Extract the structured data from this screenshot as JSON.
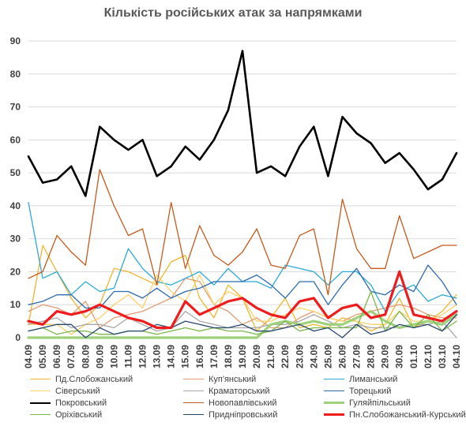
{
  "chart_data": {
    "type": "line",
    "title": "Кількість російських атак за напрямками",
    "ylim": [
      0,
      90
    ],
    "yticks": [
      0,
      10,
      20,
      30,
      40,
      50,
      60,
      70,
      80,
      90
    ],
    "grid": true,
    "legend_placement": "bottom",
    "categories": [
      "04.09",
      "05.09",
      "06.09",
      "07.09",
      "08.09",
      "09.09",
      "10.09",
      "11.09",
      "12.09",
      "13.09",
      "14.09",
      "15.09",
      "16.09",
      "17.09",
      "18.09",
      "19.09",
      "20.09",
      "21.09",
      "22.09",
      "23.09",
      "24.09",
      "25.09",
      "26.09",
      "27.09",
      "28.09",
      "29.09",
      "30.09",
      "01.10",
      "02.10",
      "03.10",
      "04.10"
    ],
    "tick_labels": [
      "04.09",
      "05.09",
      "06.09",
      "07.09",
      "08.09",
      "09.09",
      "10.09",
      "11.09",
      "12.09",
      "13.09",
      "14.09",
      "15.09",
      "16.09",
      "17.09",
      "18.09",
      "19.09",
      "20.09",
      "21.09",
      "22.09",
      "23.09",
      "24.09",
      "25.09",
      "26.09",
      "27.09",
      "28.09",
      "29.09",
      "30.09",
      "01.10",
      "02.10",
      "03.10",
      "04.10"
    ],
    "series": [
      {
        "name": "Пд.Слобожанський",
        "color": "#f0b62c",
        "width": 1.3,
        "values": [
          4,
          28,
          20,
          12,
          6,
          10,
          21,
          20,
          18,
          16,
          23,
          25,
          12,
          6,
          16,
          12,
          2,
          6,
          12,
          3,
          4,
          3,
          6,
          5,
          2,
          4,
          12,
          3,
          5,
          8,
          13
        ]
      },
      {
        "name": "Куп'янський",
        "color": "#e39b72",
        "width": 1.3,
        "values": [
          8,
          10,
          9,
          7,
          11,
          3,
          6,
          7,
          8,
          10,
          12,
          18,
          17,
          10,
          8,
          4,
          6,
          3,
          3,
          6,
          8,
          6,
          5,
          7,
          8,
          9,
          10,
          9,
          7,
          6,
          6
        ]
      },
      {
        "name": "Лиманський",
        "color": "#2aa9d9",
        "width": 1.3,
        "values": [
          41,
          18,
          20,
          13,
          17,
          14,
          15,
          27,
          21,
          17,
          16,
          18,
          20,
          16,
          21,
          17,
          17,
          15,
          22,
          21,
          20,
          16,
          20,
          20,
          16,
          8,
          14,
          16,
          11,
          13,
          12
        ]
      },
      {
        "name": "Сіверський",
        "color": "#fdd26b",
        "width": 1.3,
        "values": [
          4,
          4,
          4,
          1,
          4,
          6,
          10,
          13,
          9,
          19,
          14,
          11,
          19,
          10,
          14,
          12,
          5,
          5,
          7,
          9,
          8,
          6,
          5,
          5,
          4,
          4,
          8,
          5,
          5,
          7,
          10
        ]
      },
      {
        "name": "Краматорський",
        "color": "#a6a6a6",
        "width": 1.3,
        "values": [
          4,
          5,
          6,
          3,
          4,
          4,
          3,
          6,
          4,
          2,
          3,
          8,
          5,
          4,
          3,
          3,
          3,
          4,
          4,
          5,
          7,
          5,
          3,
          4,
          3,
          3,
          3,
          4,
          4,
          5,
          0
        ]
      },
      {
        "name": "Торецький",
        "color": "#2c6aad",
        "width": 1.3,
        "values": [
          10,
          11,
          13,
          13,
          9,
          9,
          14,
          14,
          12,
          15,
          12,
          14,
          15,
          17,
          17,
          17,
          19,
          16,
          12,
          17,
          17,
          10,
          16,
          21,
          14,
          13,
          16,
          14,
          22,
          17,
          10
        ]
      },
      {
        "name": "Покровський",
        "color": "#000000",
        "width": 2.6,
        "values": [
          55,
          47,
          48,
          52,
          43,
          64,
          60,
          57,
          60,
          49,
          52,
          58,
          54,
          60,
          69,
          87,
          50,
          52,
          49,
          58,
          64,
          49,
          67,
          62,
          59,
          53,
          56,
          51,
          45,
          48,
          56
        ]
      },
      {
        "name": "Новопавлівський",
        "color": "#c55a1b",
        "width": 1.3,
        "values": [
          18,
          20,
          31,
          26,
          22,
          51,
          40,
          31,
          33,
          16,
          41,
          21,
          34,
          25,
          22,
          26,
          33,
          22,
          21,
          31,
          33,
          13,
          42,
          27,
          21,
          21,
          37,
          24,
          26,
          28,
          28
        ]
      },
      {
        "name": "Гуляйпільський",
        "color": "#9fd17d",
        "width": 3.2,
        "values": [
          0,
          0,
          0,
          0,
          0,
          0,
          0,
          0,
          0,
          0,
          0,
          0,
          0,
          0,
          0,
          0,
          0,
          4,
          5,
          4,
          5,
          4,
          4,
          6,
          8,
          5,
          3,
          4,
          5,
          4,
          7
        ]
      },
      {
        "name": "Оріхівський",
        "color": "#7ab648",
        "width": 1.3,
        "values": [
          2,
          3,
          1,
          2,
          2,
          1,
          1,
          2,
          2,
          1,
          2,
          3,
          2,
          3,
          2,
          2,
          1,
          2,
          5,
          2,
          3,
          3,
          3,
          3,
          14,
          2,
          8,
          3,
          7,
          2,
          5
        ]
      },
      {
        "name": "Придніпровський",
        "color": "#27466e",
        "width": 1.3,
        "values": [
          2,
          3,
          4,
          4,
          0,
          3,
          1,
          2,
          2,
          4,
          3,
          5,
          4,
          3,
          3,
          4,
          2,
          2,
          3,
          4,
          2,
          3,
          0,
          4,
          1,
          2,
          4,
          3,
          4,
          2,
          7
        ]
      },
      {
        "name": "Пн.Слобожанський-Курський",
        "color": "#ee1c1c",
        "width": 3.2,
        "values": [
          5,
          4,
          8,
          7,
          8,
          10,
          8,
          6,
          5,
          3,
          3,
          11,
          7,
          9,
          11,
          12,
          9,
          7,
          6,
          11,
          12,
          6,
          9,
          10,
          6,
          7,
          20,
          7,
          6,
          5,
          8
        ]
      }
    ]
  }
}
